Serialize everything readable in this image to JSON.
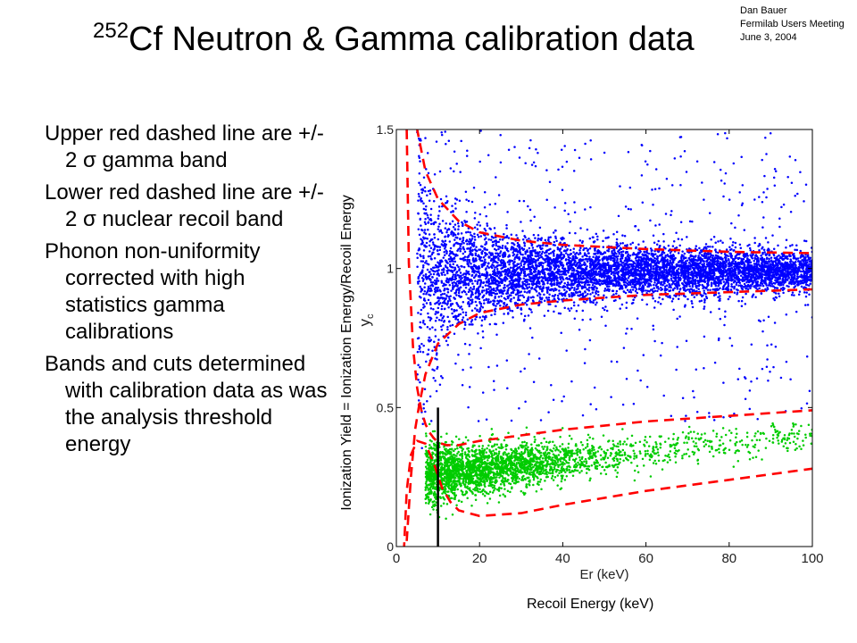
{
  "author": {
    "name": "Dan Bauer",
    "event": "Fermilab Users Meeting",
    "date": "June 3, 2004"
  },
  "title": {
    "superscript": "252",
    "text": "Cf Neutron & Gamma calibration data"
  },
  "bullets": [
    "Upper red dashed line are +/- 2 σ gamma band",
    "Lower red dashed line are +/- 2 σ nuclear recoil band",
    "Phonon non-uniformity corrected with high statistics gamma calibrations",
    "Bands and cuts determined with calibration data as was the analysis threshold energy"
  ],
  "outer_labels": {
    "ylabel": "Ionization Yield = Ionization Energy/Recoil Energy",
    "xlabel": "Recoil Energy (keV)"
  },
  "chart_data": {
    "type": "scatter",
    "title": "",
    "xlabel": "Er (keV)",
    "ylabel": "y",
    "ylabel_subscript": "c",
    "xlim": [
      0,
      100
    ],
    "ylim": [
      0,
      1.5
    ],
    "x_ticks": [
      0,
      20,
      40,
      60,
      80,
      100
    ],
    "y_ticks": [
      0,
      0.5,
      1,
      1.5
    ],
    "y_tick_labels": [
      "0",
      "0.5",
      "1",
      "1.5"
    ],
    "grid": false,
    "threshold_line": {
      "x": 10,
      "y_range": [
        0,
        0.5
      ],
      "color": "#000000"
    },
    "series": [
      {
        "kind": "gamma",
        "color": "#0000ff",
        "approx_points": 6500,
        "center_y": 0.99,
        "sigma_model": "0.025 + 1.25/Er",
        "x_range": [
          5,
          100
        ]
      },
      {
        "kind": "nuclear recoil",
        "color": "#00cc00",
        "approx_points": 2800,
        "center_model": "0.25 + 0.0015*Er",
        "x_range": [
          7,
          100
        ]
      }
    ],
    "band_lines": [
      {
        "name": "gamma band +2 sigma",
        "color": "#ff0000",
        "style": "dashed",
        "x": [
          1.8,
          2.5,
          3.5,
          5,
          7,
          10,
          15,
          20,
          30,
          40,
          60,
          80,
          100
        ],
        "y": [
          2.2,
          1.98,
          1.69,
          1.5,
          1.35,
          1.25,
          1.17,
          1.13,
          1.1,
          1.085,
          1.07,
          1.06,
          1.055
        ]
      },
      {
        "name": "gamma band -2 sigma",
        "color": "#ff0000",
        "style": "dashed",
        "x": [
          2.5,
          3.5,
          4.5,
          5.5,
          7,
          10,
          15,
          20,
          30,
          40,
          60,
          80,
          100
        ],
        "y": [
          0.02,
          0.25,
          0.42,
          0.51,
          0.62,
          0.73,
          0.8,
          0.84,
          0.87,
          0.885,
          0.905,
          0.915,
          0.925
        ]
      },
      {
        "name": "nuclear recoil band +2 sigma",
        "color": "#ff0000",
        "style": "dashed",
        "x": [
          2.5,
          3,
          4,
          5,
          6,
          7,
          8,
          9,
          10,
          12,
          15,
          20,
          30,
          40,
          60,
          80,
          100
        ],
        "y": [
          1.5,
          1.02,
          0.72,
          0.57,
          0.49,
          0.44,
          0.41,
          0.39,
          0.375,
          0.365,
          0.365,
          0.38,
          0.4,
          0.42,
          0.45,
          0.47,
          0.49
        ]
      },
      {
        "name": "nuclear recoil band -2 sigma",
        "color": "#ff0000",
        "style": "dashed",
        "x": [
          1.8,
          2.5,
          3.5,
          5,
          7,
          9,
          11,
          13,
          15,
          20,
          30,
          40,
          60,
          80,
          100
        ],
        "y": [
          -0.02,
          0.2,
          0.33,
          0.38,
          0.37,
          0.3,
          0.21,
          0.16,
          0.13,
          0.11,
          0.12,
          0.15,
          0.2,
          0.24,
          0.28
        ]
      }
    ]
  }
}
